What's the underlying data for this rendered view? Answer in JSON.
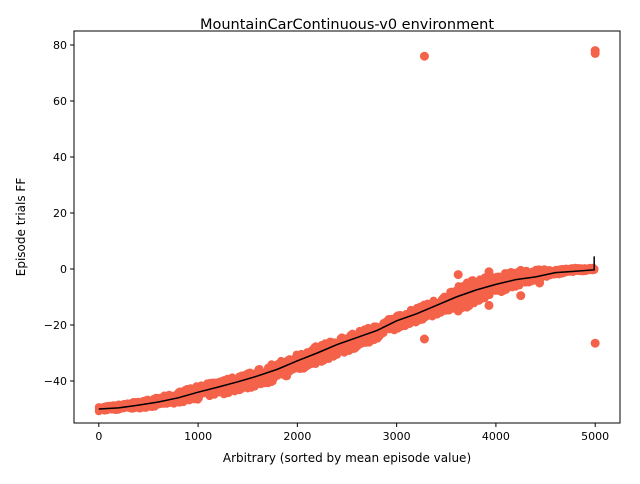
{
  "chart_data": {
    "type": "scatter",
    "title": "MountainCarContinuous-v0 environment",
    "xlabel": "Arbitrary (sorted by mean episode value)",
    "ylabel": "Episode trials FF",
    "xlim": [
      -250,
      5250
    ],
    "ylim": [
      -55,
      85
    ],
    "xticks": [
      0,
      1000,
      2000,
      3000,
      4000,
      5000
    ],
    "yticks": [
      -40,
      -20,
      0,
      20,
      40,
      60,
      80
    ],
    "xtick_labels": [
      "0",
      "1000",
      "2000",
      "3000",
      "4000",
      "5000"
    ],
    "ytick_labels": [
      "−40",
      "−20",
      "0",
      "20",
      "40",
      "60",
      "80"
    ],
    "grid": false,
    "series": [
      {
        "kind": "scatter",
        "color": "#f5624a",
        "mean_curve": [
          [
            0,
            -50
          ],
          [
            300,
            -49
          ],
          [
            600,
            -47.5
          ],
          [
            900,
            -45
          ],
          [
            1200,
            -42.5
          ],
          [
            1500,
            -40
          ],
          [
            1800,
            -36.5
          ],
          [
            2100,
            -32
          ],
          [
            2400,
            -28
          ],
          [
            2700,
            -24
          ],
          [
            3000,
            -19
          ],
          [
            3300,
            -15
          ],
          [
            3600,
            -10.5
          ],
          [
            3900,
            -6.5
          ],
          [
            4200,
            -3.5
          ],
          [
            4500,
            -1.5
          ],
          [
            4800,
            -0.3
          ],
          [
            5000,
            0
          ]
        ],
        "spread": [
          [
            0,
            0.8
          ],
          [
            500,
            1.5
          ],
          [
            1000,
            2.5
          ],
          [
            1500,
            3
          ],
          [
            2000,
            3.5
          ],
          [
            2500,
            3
          ],
          [
            3000,
            2.5
          ],
          [
            3500,
            3
          ],
          [
            3700,
            5
          ],
          [
            4000,
            3.5
          ],
          [
            4300,
            2.5
          ],
          [
            4600,
            1
          ],
          [
            5000,
            0.5
          ]
        ],
        "outliers": [
          [
            3280,
            76
          ],
          [
            5000,
            78
          ],
          [
            5000,
            77
          ],
          [
            3280,
            -25
          ],
          [
            5000,
            -26.5
          ],
          [
            3620,
            -2
          ],
          [
            3620,
            -15
          ],
          [
            3930,
            -1
          ],
          [
            3930,
            -13
          ],
          [
            4250,
            -0.5
          ],
          [
            4250,
            -9.5
          ],
          [
            4440,
            -5
          ]
        ]
      },
      {
        "kind": "line",
        "color": "#000000",
        "points": [
          [
            0,
            -50
          ],
          [
            200,
            -49.6
          ],
          [
            400,
            -48.6
          ],
          [
            600,
            -47.5
          ],
          [
            800,
            -46
          ],
          [
            1000,
            -44
          ],
          [
            1200,
            -42.2
          ],
          [
            1400,
            -40.3
          ],
          [
            1600,
            -38.2
          ],
          [
            1800,
            -35.8
          ],
          [
            2000,
            -32.8
          ],
          [
            2200,
            -30
          ],
          [
            2400,
            -27
          ],
          [
            2600,
            -24.5
          ],
          [
            2800,
            -22
          ],
          [
            3000,
            -18.5
          ],
          [
            3200,
            -16
          ],
          [
            3400,
            -13
          ],
          [
            3600,
            -10
          ],
          [
            3800,
            -7.5
          ],
          [
            4000,
            -5.5
          ],
          [
            4200,
            -3.8
          ],
          [
            4400,
            -2.8
          ],
          [
            4600,
            -1.3
          ],
          [
            4800,
            -0.8
          ],
          [
            4990,
            -0.3
          ],
          [
            4990,
            1
          ],
          [
            4990,
            4.5
          ]
        ]
      }
    ]
  }
}
